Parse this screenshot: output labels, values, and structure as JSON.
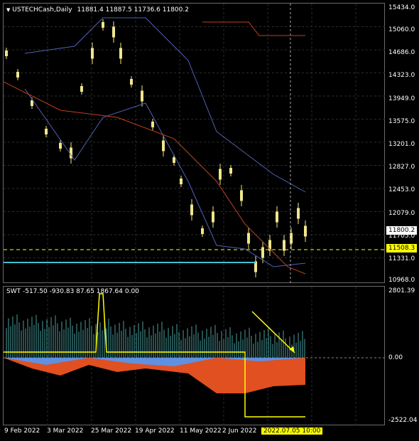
{
  "chart": {
    "symbol_label": "USTECHCash,Daily",
    "ohlc": "11881.4 11887.5 11736.6 11800.2"
  },
  "price_axis": [
    "15434.0",
    "15060.0",
    "14686.0",
    "14323.0",
    "13949.0",
    "13575.0",
    "13201.0",
    "12827.0",
    "12453.0",
    "12079.0",
    "11705.0",
    "11331.0",
    "10968.0"
  ],
  "price_tags": {
    "current": "11800.2",
    "level": "11508.3"
  },
  "indicator": {
    "label": "SWT -517.50 -930.83 87.65 1867.64 0.00",
    "axis": [
      "2801.39",
      "0.00",
      "-2522.04"
    ]
  },
  "time_axis": [
    "9 Feb 2022",
    "3 Mar 2022",
    "25 Mar 2022",
    "19 Apr 2022",
    "11 May 2022",
    "2 Jun 2022"
  ],
  "time_cursor": "2022.07.05 10:00",
  "colors": {
    "candle": "#f0e68c",
    "grid": "#2c2c2c",
    "current_tag_bg": "#ffffff",
    "level_tag_bg": "#ffff00",
    "cursor_tag_bg": "#ffff00"
  }
}
